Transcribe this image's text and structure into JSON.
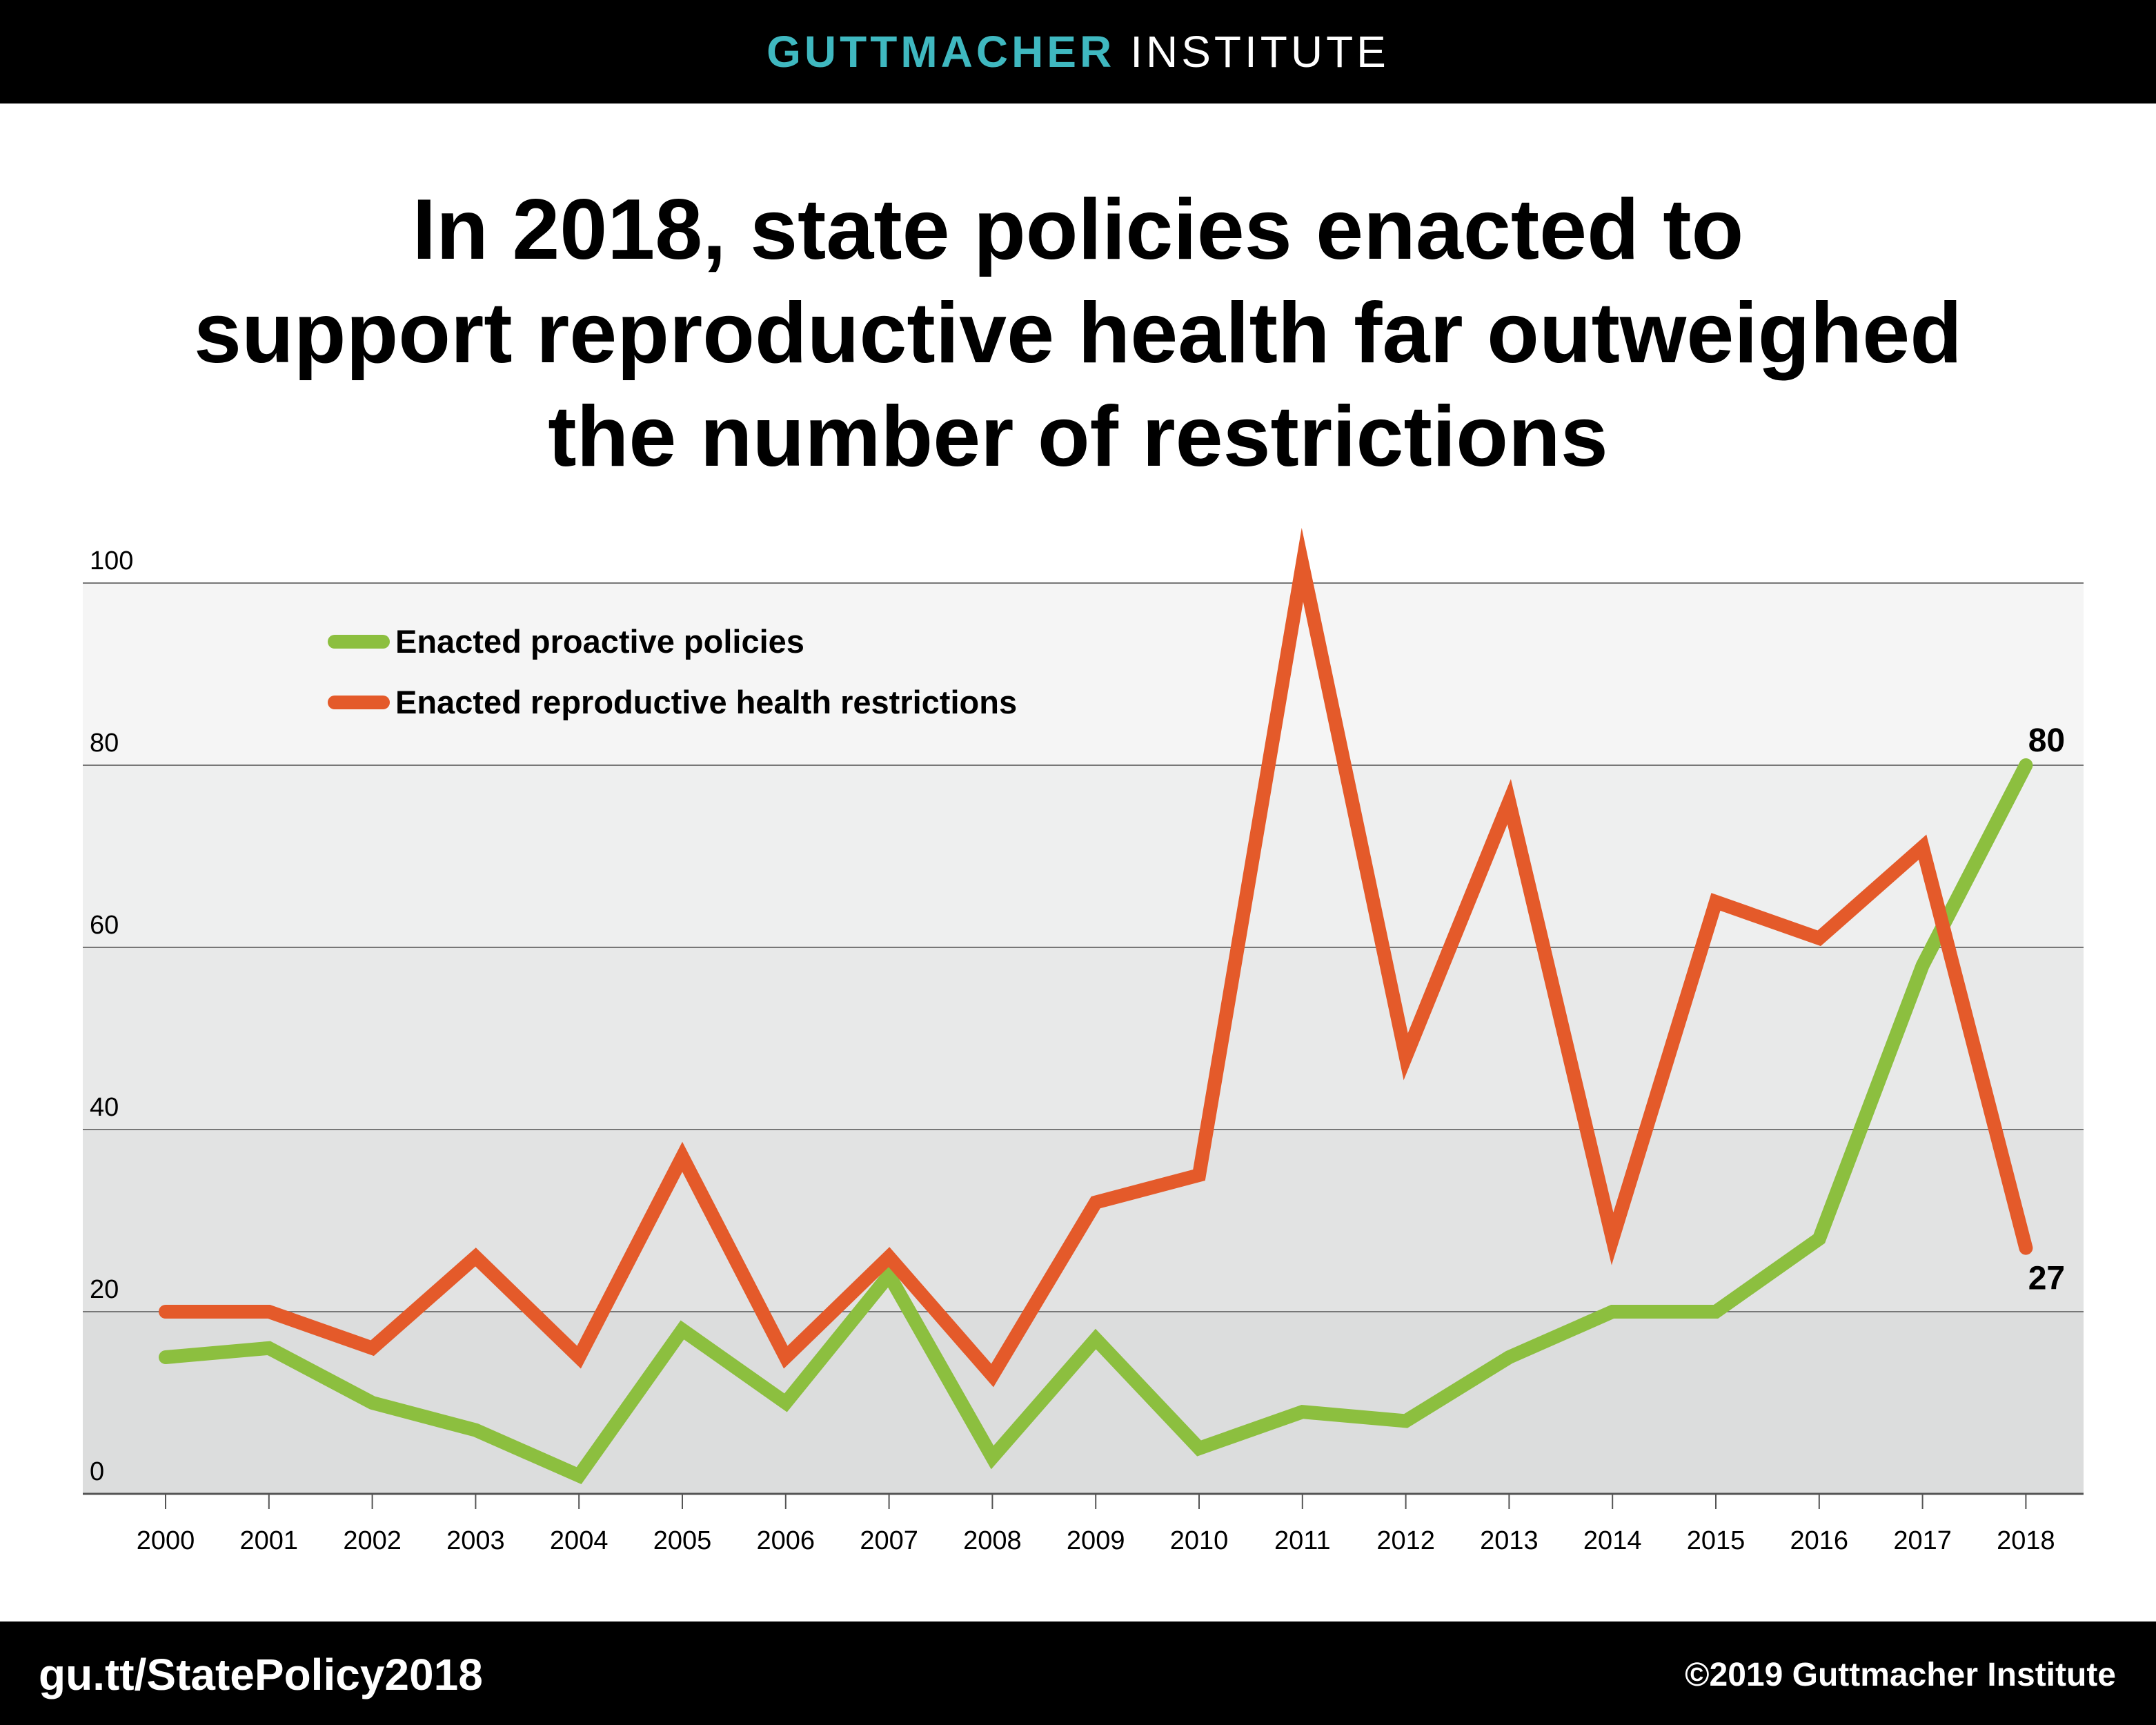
{
  "header": {
    "brand_primary": "GUTTMACHER",
    "brand_secondary": "INSTITUTE",
    "brand_color": "#3fb8c0"
  },
  "title_lines": [
    "In 2018, state policies enacted to",
    "support reproductive health far outweighed",
    "the number of restrictions"
  ],
  "footer": {
    "url": "gu.tt/StatePolicy2018",
    "copyright": "©2019 Guttmacher Institute"
  },
  "chart_data": {
    "type": "line",
    "x": [
      "2000",
      "2001",
      "2002",
      "2003",
      "2004",
      "2005",
      "2006",
      "2007",
      "2008",
      "2009",
      "2010",
      "2011",
      "2012",
      "2013",
      "2014",
      "2015",
      "2016",
      "2017",
      "2018"
    ],
    "ylim": [
      0,
      100
    ],
    "yticks": [
      0,
      20,
      40,
      60,
      80,
      100
    ],
    "grid": true,
    "legend_position": "top-left",
    "series": [
      {
        "name": "Enacted proactive policies",
        "color": "#8cbf3f",
        "values": [
          15,
          16,
          10,
          7,
          2,
          18,
          10,
          24,
          4,
          17,
          5,
          9,
          8,
          15,
          20,
          20,
          28,
          58,
          80
        ],
        "end_label": "80"
      },
      {
        "name": "Enacted reproductive health restrictions",
        "color": "#e45a2a",
        "values": [
          20,
          20,
          16,
          26,
          15,
          37,
          15,
          26,
          13,
          32,
          35,
          102,
          48,
          76,
          28,
          65,
          61,
          71,
          27
        ],
        "end_label": "27"
      }
    ]
  }
}
